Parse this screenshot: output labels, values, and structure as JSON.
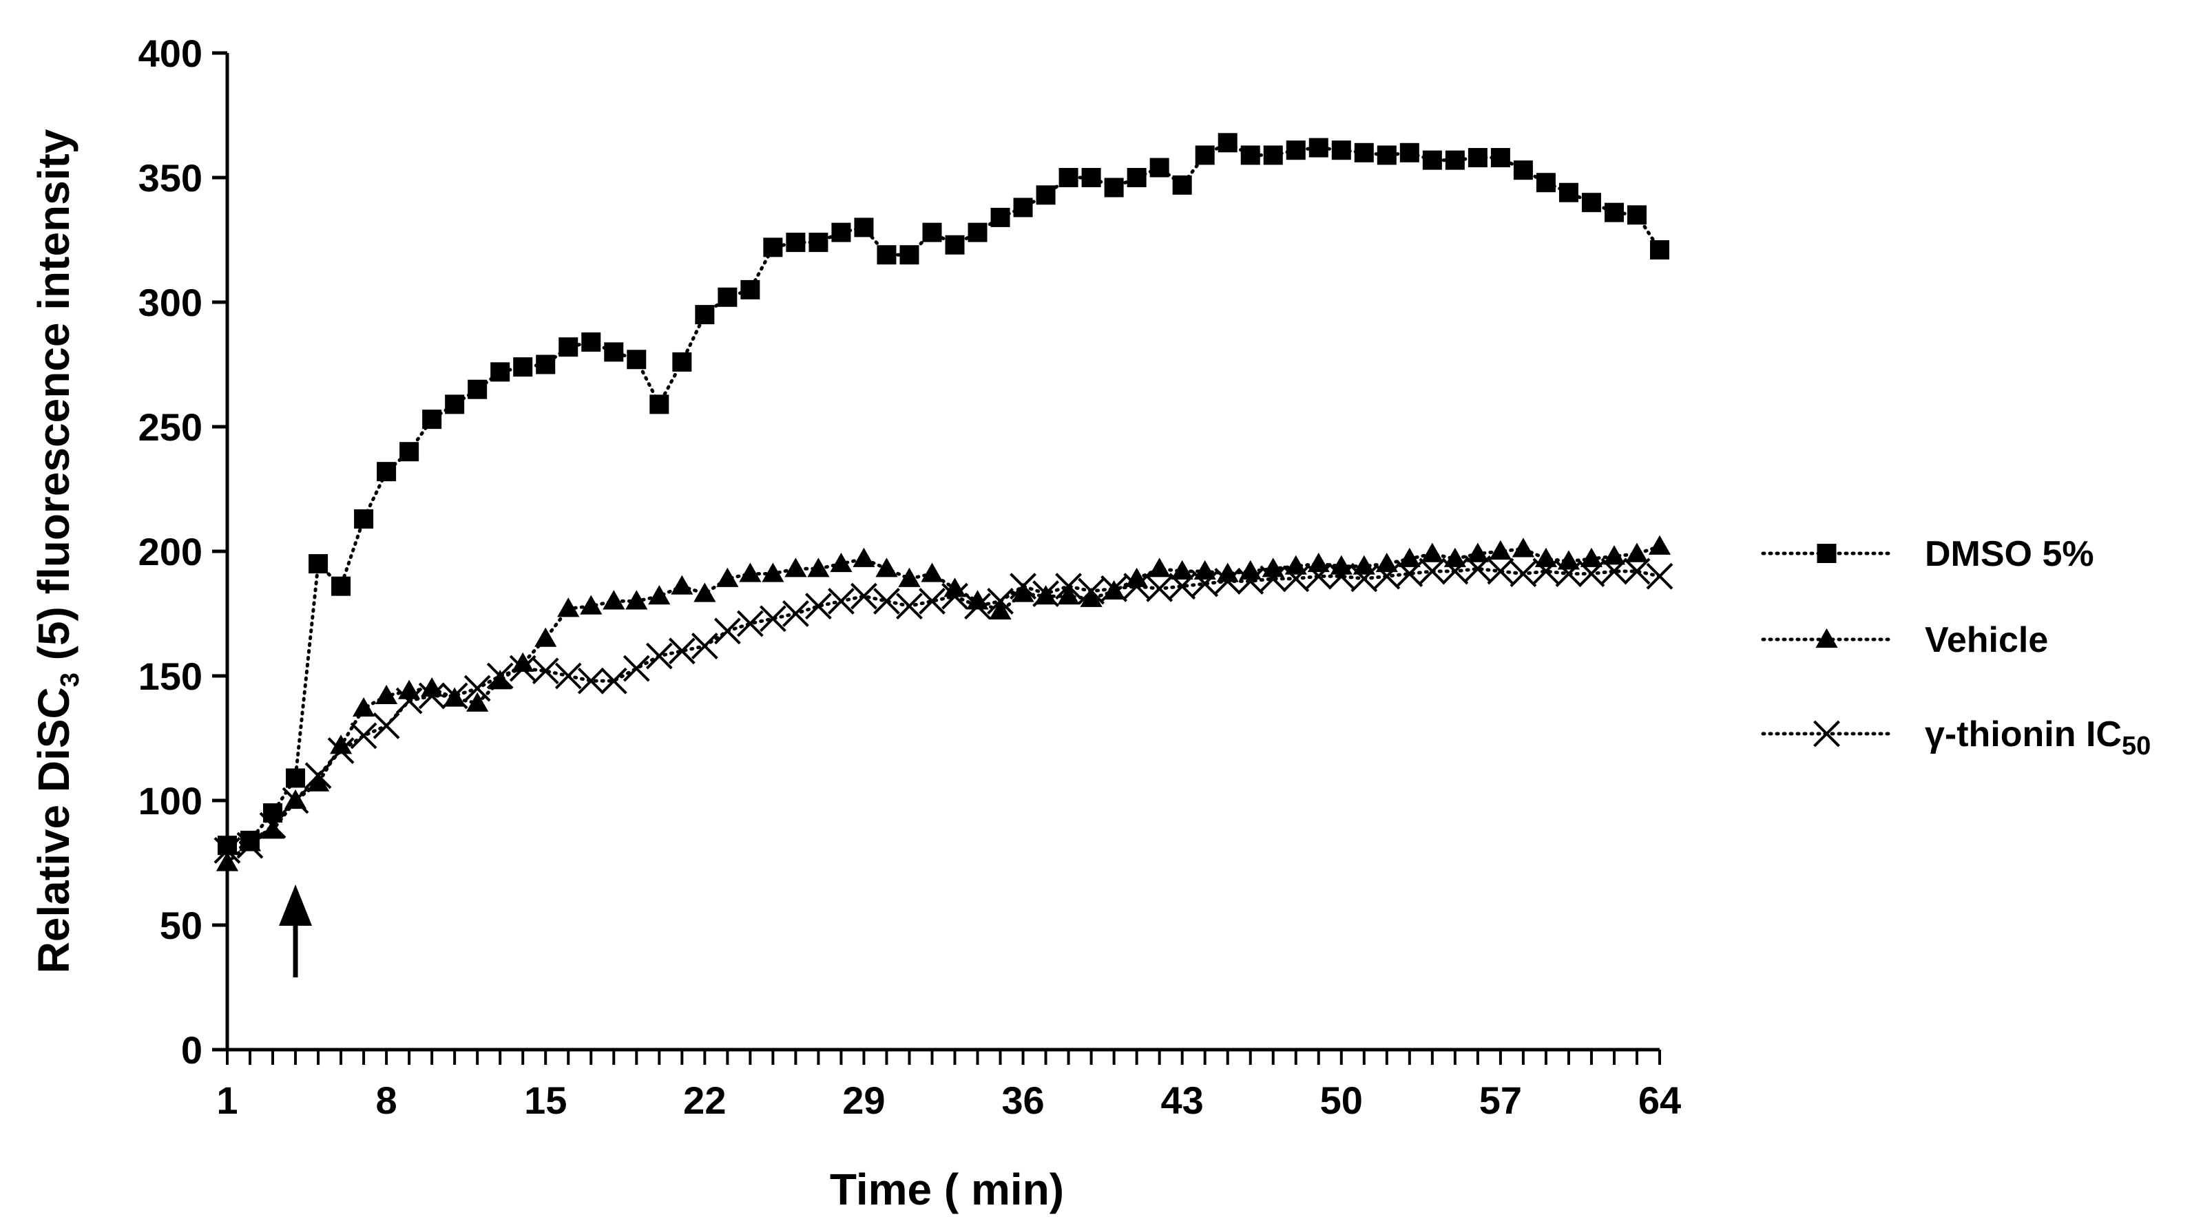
{
  "chart_data": {
    "type": "line",
    "title": "",
    "xlabel": "Time ( min)",
    "ylabel": "Relative DiSC₃ (5) fluorescence intensity",
    "ylabel_parts": {
      "pre": "Relative DiSC",
      "sub": "3",
      "post": " (5) fluorescence intensity"
    },
    "xlim": [
      1,
      64
    ],
    "ylim": [
      0,
      400
    ],
    "x_ticks": [
      1,
      8,
      15,
      22,
      29,
      36,
      43,
      50,
      57,
      64
    ],
    "y_ticks": [
      0,
      50,
      100,
      150,
      200,
      250,
      300,
      350,
      400
    ],
    "grid": false,
    "legend_position": "right",
    "line_style": "dotted",
    "annotations": [
      {
        "type": "arrow",
        "x": 4,
        "points": "up"
      }
    ],
    "series": [
      {
        "name": "DMSO 5%",
        "marker": "square",
        "color": "#000000",
        "x": [
          1,
          2,
          3,
          4,
          5,
          6,
          7,
          8,
          9,
          10,
          11,
          12,
          13,
          14,
          15,
          16,
          17,
          18,
          19,
          20,
          21,
          22,
          23,
          24,
          25,
          26,
          27,
          28,
          29,
          30,
          31,
          32,
          33,
          34,
          35,
          36,
          37,
          38,
          39,
          40,
          41,
          42,
          43,
          44,
          45,
          46,
          47,
          48,
          49,
          50,
          51,
          52,
          53,
          54,
          55,
          56,
          57,
          58,
          59,
          60,
          61,
          62,
          63,
          64
        ],
        "values": [
          82,
          84,
          95,
          109,
          195,
          186,
          213,
          232,
          240,
          253,
          259,
          265,
          272,
          274,
          275,
          282,
          284,
          280,
          277,
          259,
          276,
          295,
          302,
          305,
          322,
          324,
          324,
          328,
          330,
          319,
          319,
          328,
          323,
          328,
          334,
          338,
          343,
          350,
          350,
          346,
          350,
          354,
          347,
          359,
          364,
          359,
          359,
          361,
          362,
          361,
          360,
          359,
          360,
          357,
          357,
          358,
          358,
          353,
          348,
          344,
          340,
          336,
          335,
          321
        ]
      },
      {
        "name": "Vehicle",
        "marker": "triangle",
        "color": "#000000",
        "x": [
          1,
          2,
          3,
          4,
          5,
          6,
          7,
          8,
          9,
          10,
          11,
          12,
          13,
          14,
          15,
          16,
          17,
          18,
          19,
          20,
          21,
          22,
          23,
          24,
          25,
          26,
          27,
          28,
          29,
          30,
          31,
          32,
          33,
          34,
          35,
          36,
          37,
          38,
          39,
          40,
          41,
          42,
          43,
          44,
          45,
          46,
          47,
          48,
          49,
          50,
          51,
          52,
          53,
          54,
          55,
          56,
          57,
          58,
          59,
          60,
          61,
          62,
          63,
          64
        ],
        "values": [
          75,
          83,
          88,
          100,
          107,
          122,
          137,
          142,
          144,
          145,
          141,
          139,
          148,
          155,
          165,
          177,
          178,
          180,
          180,
          182,
          186,
          183,
          189,
          191,
          191,
          193,
          193,
          195,
          197,
          193,
          189,
          191,
          185,
          180,
          176,
          183,
          182,
          182,
          181,
          184,
          189,
          193,
          192,
          192,
          191,
          192,
          193,
          194,
          195,
          194,
          194,
          195,
          197,
          199,
          197,
          199,
          200,
          201,
          197,
          196,
          197,
          198,
          199,
          202
        ]
      },
      {
        "name": "γ-thionin IC₅₀",
        "name_parts": {
          "pre": "γ-thionin IC",
          "sub": "50"
        },
        "marker": "x",
        "color": "#000000",
        "x": [
          1,
          2,
          3,
          4,
          5,
          6,
          7,
          8,
          9,
          10,
          11,
          12,
          13,
          14,
          15,
          16,
          17,
          18,
          19,
          20,
          21,
          22,
          23,
          24,
          25,
          26,
          27,
          28,
          29,
          30,
          31,
          32,
          33,
          34,
          35,
          36,
          37,
          38,
          39,
          40,
          41,
          42,
          43,
          44,
          45,
          46,
          47,
          48,
          49,
          50,
          51,
          52,
          53,
          54,
          55,
          56,
          57,
          58,
          59,
          60,
          61,
          62,
          63,
          64
        ],
        "values": [
          80,
          82,
          90,
          100,
          110,
          120,
          126,
          130,
          140,
          142,
          142,
          145,
          150,
          153,
          152,
          150,
          148,
          148,
          153,
          158,
          160,
          162,
          168,
          171,
          173,
          175,
          178,
          180,
          182,
          180,
          178,
          180,
          182,
          178,
          180,
          186,
          183,
          186,
          184,
          185,
          186,
          185,
          186,
          187,
          188,
          188,
          189,
          189,
          190,
          190,
          189,
          190,
          191,
          192,
          192,
          193,
          192,
          191,
          192,
          191,
          191,
          192,
          192,
          190
        ]
      }
    ]
  }
}
